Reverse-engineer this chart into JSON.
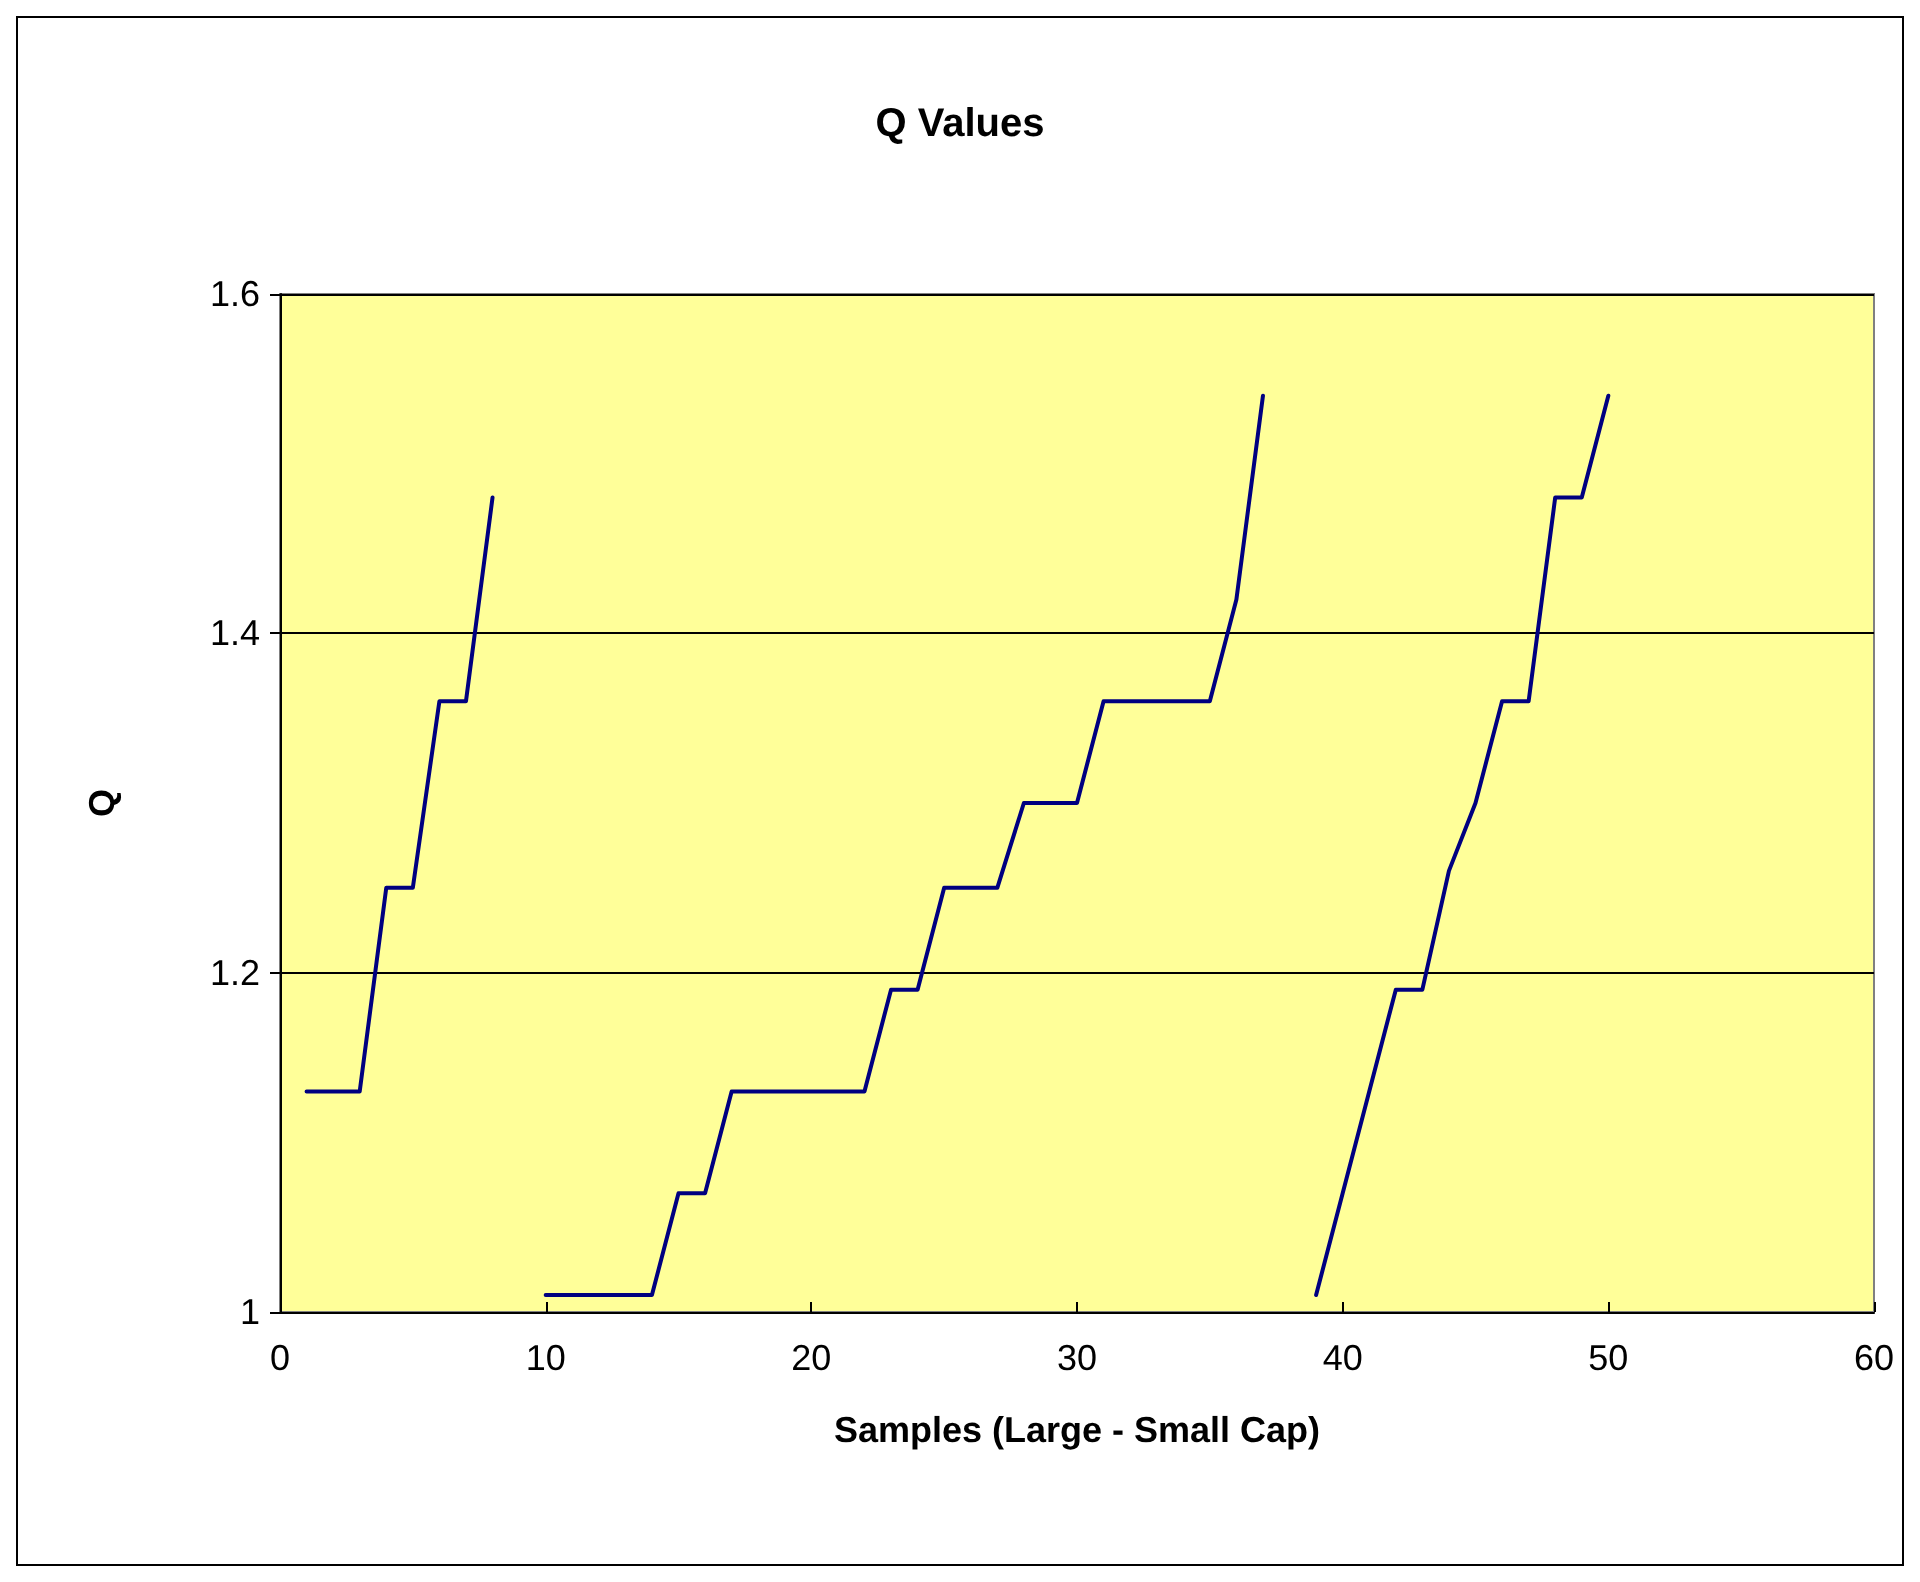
{
  "chart_data": {
    "type": "line",
    "title": "Q Values",
    "xlabel": "Samples (Large - Small Cap)",
    "ylabel": "Q",
    "x": [
      1,
      2,
      3,
      4,
      5,
      6,
      7,
      8,
      9,
      10,
      11,
      12,
      13,
      14,
      15,
      16,
      17,
      18,
      19,
      20,
      21,
      22,
      23,
      24,
      25,
      26,
      27,
      28,
      29,
      30,
      31,
      32,
      33,
      34,
      35,
      36,
      37,
      38,
      39,
      40,
      41,
      42,
      43,
      44,
      45,
      46,
      47,
      48,
      49,
      50
    ],
    "series": [
      {
        "color": "#000080",
        "values": [
          1.13,
          1.13,
          1.13,
          1.25,
          1.25,
          1.36,
          1.36,
          1.48,
          null,
          1.01,
          1.01,
          1.01,
          1.01,
          1.01,
          1.07,
          1.07,
          1.13,
          1.13,
          1.13,
          1.13,
          1.13,
          1.13,
          1.19,
          1.19,
          1.25,
          1.25,
          1.25,
          1.3,
          1.3,
          1.3,
          1.36,
          1.36,
          1.36,
          1.36,
          1.36,
          1.42,
          1.54,
          null,
          1.01,
          1.07,
          1.13,
          1.19,
          1.19,
          1.26,
          1.3,
          1.36,
          1.36,
          1.48,
          1.48,
          1.54
        ]
      }
    ],
    "xlim": [
      0,
      60
    ],
    "xticks": [
      0,
      10,
      20,
      30,
      40,
      50,
      60
    ],
    "ylim": [
      1,
      1.6
    ],
    "yticks": [
      1,
      1.2,
      1.4,
      1.6
    ],
    "grid": "y",
    "marker": "none",
    "line_style": "solid"
  }
}
